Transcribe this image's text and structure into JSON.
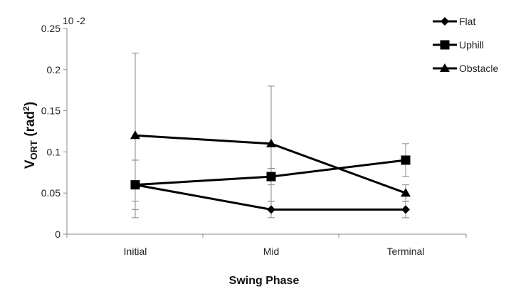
{
  "chart_data": {
    "type": "line",
    "ylabel_main": "V",
    "ylabel_sub": "ORT",
    "ylabel_unit_pre": " (rad",
    "ylabel_unit_sup": "2",
    "ylabel_unit_post": ")",
    "xlabel": "Swing Phase",
    "scale_label": "10 -2",
    "categories": [
      "Initial",
      "Mid",
      "Terminal"
    ],
    "ylim": [
      0,
      0.25
    ],
    "yticks": [
      0,
      0.05,
      0.1,
      0.15,
      0.2,
      0.25
    ],
    "ytick_labels": [
      "0",
      "0.05",
      "0.1",
      "0.15",
      "0.2",
      "0.25"
    ],
    "grid": false,
    "legend_position": "top-right",
    "series": [
      {
        "name": "Flat",
        "marker": "diamond",
        "values": [
          0.06,
          0.03,
          0.03
        ],
        "err_lower": [
          0.04,
          0.02,
          0.02
        ],
        "err_upper": [
          0.09,
          0.04,
          0.04
        ]
      },
      {
        "name": "Uphill",
        "marker": "square",
        "values": [
          0.06,
          0.07,
          0.09
        ],
        "err_lower": [
          0.03,
          0.06,
          0.07
        ],
        "err_upper": [
          0.09,
          0.08,
          0.11
        ]
      },
      {
        "name": "Obstacle",
        "marker": "triangle",
        "values": [
          0.12,
          0.11,
          0.05
        ],
        "err_lower": [
          0.02,
          0.04,
          0.04
        ],
        "err_upper": [
          0.22,
          0.18,
          0.06
        ]
      }
    ],
    "line_color": "#000000",
    "axis_color": "#888888"
  }
}
